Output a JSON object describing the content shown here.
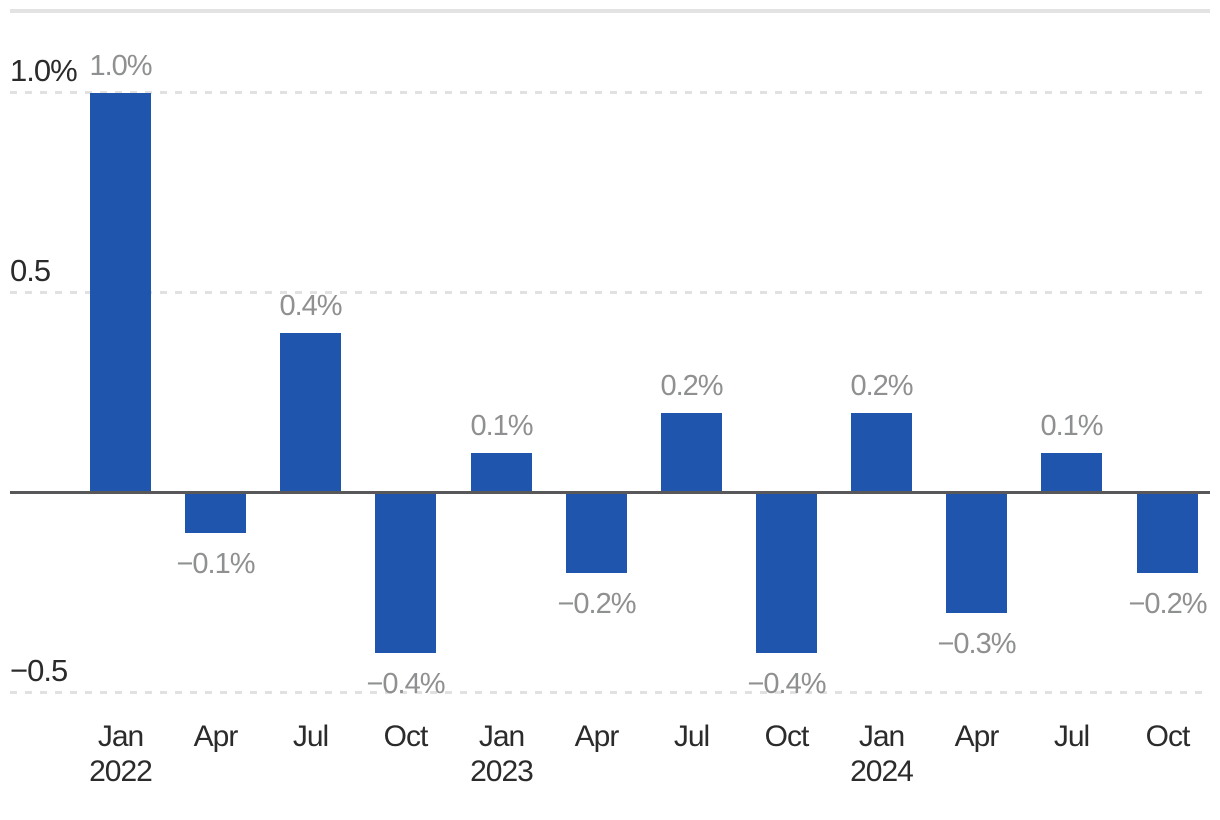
{
  "chart_data": {
    "type": "bar",
    "title": "",
    "xlabel": "",
    "ylabel": "",
    "unit": "%",
    "categories": [
      {
        "month": "Jan",
        "year": "2022"
      },
      {
        "month": "Apr",
        "year": ""
      },
      {
        "month": "Jul",
        "year": ""
      },
      {
        "month": "Oct",
        "year": ""
      },
      {
        "month": "Jan",
        "year": "2023"
      },
      {
        "month": "Apr",
        "year": ""
      },
      {
        "month": "Jul",
        "year": ""
      },
      {
        "month": "Oct",
        "year": ""
      },
      {
        "month": "Jan",
        "year": "2024"
      },
      {
        "month": "Apr",
        "year": ""
      },
      {
        "month": "Jul",
        "year": ""
      },
      {
        "month": "Oct",
        "year": ""
      }
    ],
    "values": [
      1.0,
      -0.1,
      0.4,
      -0.4,
      0.1,
      -0.2,
      0.2,
      -0.4,
      0.2,
      -0.3,
      0.1,
      -0.2
    ],
    "bar_labels": [
      "1.0%",
      "−0.1%",
      "0.4%",
      "−0.4%",
      "0.1%",
      "−0.2%",
      "0.2%",
      "−0.4%",
      "0.2%",
      "−0.3%",
      "0.1%",
      "−0.2%"
    ],
    "y_axis": {
      "ticks": [
        {
          "value": 1.0,
          "label": "1.0%"
        },
        {
          "value": 0.5,
          "label": "0.5"
        },
        {
          "value": -0.5,
          "label": "−0.5"
        }
      ],
      "range": [
        -0.6,
        1.1
      ]
    },
    "grid": "horizontal dashed lines at 1.0, 0.5 and −0.5; solid dark zero axis; light gray rule across the top",
    "legend": "none",
    "colors": {
      "bar": "#2055ae",
      "value_label": "#8f9091",
      "axis_label": "#2b2b2c",
      "zero_line": "#58585a",
      "gridline": "#e1e1e1",
      "top_rule": "#e3e3e3",
      "background": "#ffffff"
    }
  }
}
